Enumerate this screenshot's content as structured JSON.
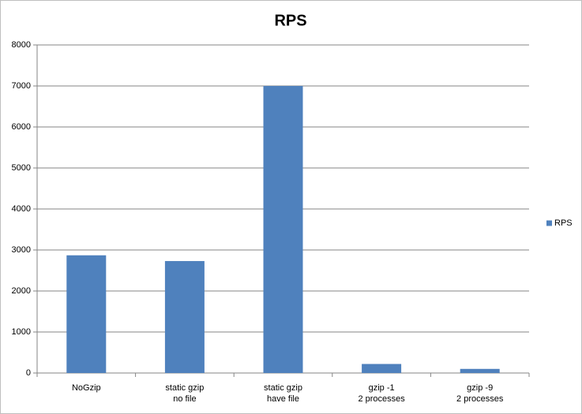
{
  "chart_data": {
    "type": "bar",
    "title": "RPS",
    "categories": [
      "NoGzip",
      "static gzip\nno file",
      "static gzip\nhave file",
      "gzip -1\n2 processes",
      "gzip -9\n2 processes"
    ],
    "series": [
      {
        "name": "RPS",
        "color": "#4f81bd",
        "values": [
          2870,
          2730,
          7000,
          220,
          100
        ]
      }
    ],
    "ylim": [
      0,
      8000
    ],
    "yticks": [
      0,
      1000,
      2000,
      3000,
      4000,
      5000,
      6000,
      7000,
      8000
    ],
    "grid": true,
    "legend": "right"
  }
}
